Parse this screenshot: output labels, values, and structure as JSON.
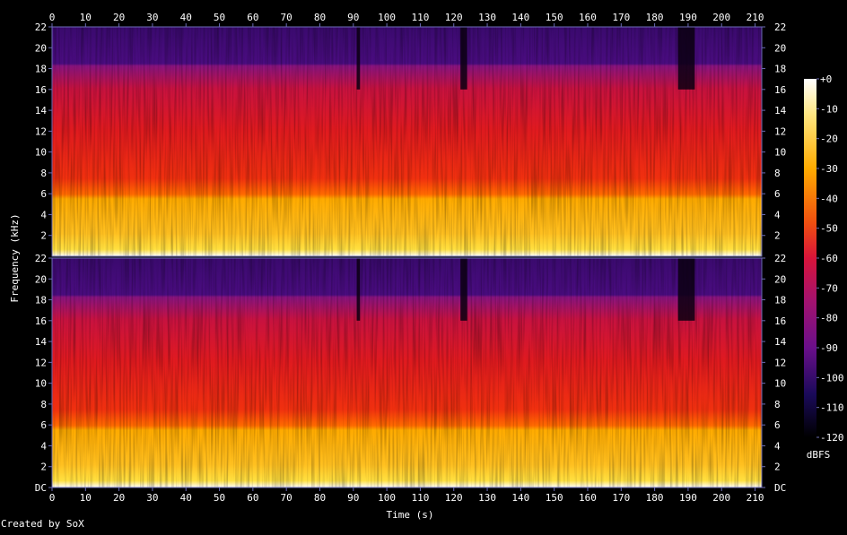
{
  "app": "SoX",
  "credit": "Created by SoX",
  "colors": {
    "background": "#000000",
    "axis": "#6b6bb5",
    "text": "#ffffff",
    "scale": [
      "#000000",
      "#1a0033",
      "#3a0a6e",
      "#6a0f8a",
      "#a3126f",
      "#d8143a",
      "#f0300f",
      "#ff6a00",
      "#ffab00",
      "#ffe040",
      "#ffffff"
    ]
  },
  "chart_data": {
    "type": "heatmap",
    "subtype": "spectrogram",
    "channels": 2,
    "xlabel": "Time (s)",
    "ylabel": "Frequency (kHz)",
    "xlim": [
      0,
      212
    ],
    "ylim": [
      0,
      22
    ],
    "x_ticks": [
      0,
      10,
      20,
      30,
      40,
      50,
      60,
      70,
      80,
      90,
      100,
      110,
      120,
      130,
      140,
      150,
      160,
      170,
      180,
      190,
      200,
      210
    ],
    "y_ticks_top": [
      "22",
      "20",
      "18",
      "16",
      "14",
      "12",
      "10",
      "8",
      "6",
      "4",
      "2"
    ],
    "y_ticks_bottom": [
      "22",
      "20",
      "18",
      "16",
      "14",
      "12",
      "10",
      "8",
      "6",
      "4",
      "2",
      "DC"
    ],
    "y_tick_values": [
      22,
      20,
      18,
      16,
      14,
      12,
      10,
      8,
      6,
      4,
      2,
      0
    ],
    "colorbar": {
      "label": "dBFS",
      "range": [
        -120,
        0
      ],
      "ticks": [
        "+0",
        "-10",
        "-20",
        "-30",
        "-40",
        "-50",
        "-60",
        "-70",
        "-80",
        "-90",
        "-100",
        "-110",
        "-120"
      ],
      "tick_values": [
        0,
        -10,
        -20,
        -30,
        -40,
        -50,
        -60,
        -70,
        -80,
        -90,
        -100,
        -110,
        -120
      ]
    },
    "bands_khz": [
      {
        "from": 0,
        "to": 6,
        "level_db": -30
      },
      {
        "from": 6,
        "to": 16,
        "level_db": -55
      },
      {
        "from": 16,
        "to": 18.5,
        "level_db": -70
      },
      {
        "from": 18.5,
        "to": 22,
        "level_db": -90
      }
    ],
    "quiet_segments_s": [
      [
        187,
        192
      ],
      [
        91,
        92
      ],
      [
        122,
        124
      ]
    ]
  }
}
